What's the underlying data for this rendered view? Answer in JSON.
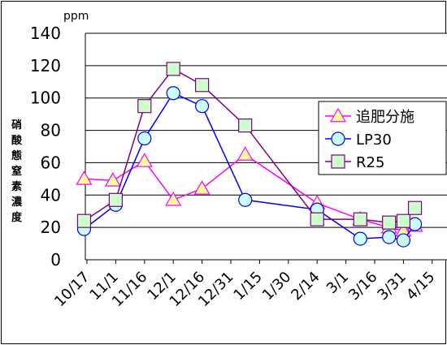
{
  "chart_data": {
    "type": "line",
    "y_unit": "ppm",
    "ylabel": "硝酸態窒素濃度",
    "ylim": [
      0,
      140
    ],
    "y_ticks": [
      0,
      20,
      40,
      60,
      80,
      100,
      120,
      140
    ],
    "grid": true,
    "legend_position": "right",
    "categories": [
      "10/17",
      "11/1",
      "11/16",
      "12/1",
      "12/16",
      "12/31",
      "1/15",
      "1/30",
      "2/14",
      "3/1",
      "3/16",
      "3/31",
      "4/15"
    ],
    "series": [
      {
        "name": "追肥分施",
        "color": "#ff00ff",
        "marker": "triangle",
        "marker_fill": "#ffff99",
        "x": [
          -0.1,
          0.9,
          2,
          3,
          4,
          5.5,
          8,
          9.5,
          10.5,
          11,
          11.4
        ],
        "y": [
          50,
          49,
          61,
          37,
          44,
          65,
          35,
          25,
          20,
          18,
          21
        ]
      },
      {
        "name": "LP30",
        "color": "#0000ff",
        "marker": "circle",
        "marker_fill": "#ccffff",
        "x": [
          -0.1,
          1,
          2,
          3,
          4,
          5.5,
          8,
          9.5,
          10.5,
          11,
          11.4
        ],
        "y": [
          19,
          34,
          75,
          103,
          95,
          37,
          31,
          13,
          14,
          12,
          22
        ]
      },
      {
        "name": "R25",
        "color": "#800080",
        "marker": "square",
        "marker_fill": "#ccffcc",
        "x": [
          -0.1,
          1,
          2,
          3,
          4,
          5.5,
          8,
          9.5,
          10.5,
          11,
          11.4
        ],
        "y": [
          24,
          37,
          95,
          118,
          108,
          83,
          25,
          25,
          23,
          24,
          32
        ]
      }
    ]
  }
}
